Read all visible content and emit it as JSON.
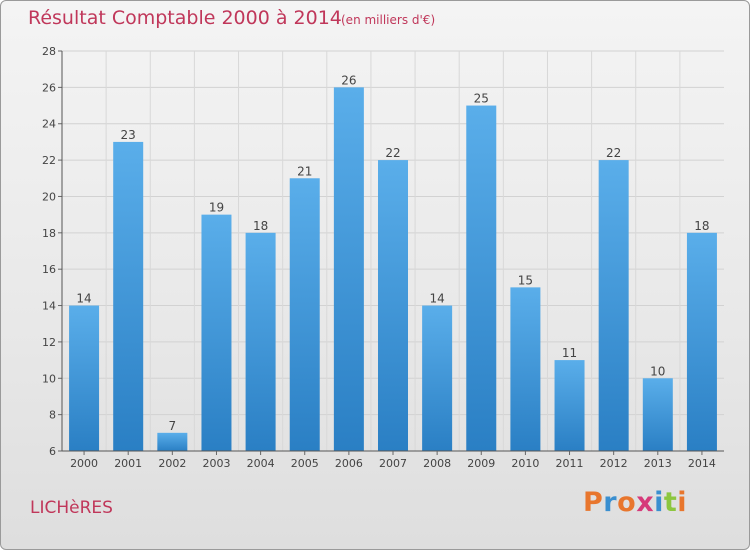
{
  "header": {
    "title": "Résultat Comptable 2000 à 2014",
    "subtitle": "(en milliers d'€)"
  },
  "footer": {
    "commune": "LICHèRES",
    "logo_letters": [
      "P",
      "r",
      "o",
      "x",
      "i",
      "t",
      "i"
    ],
    "logo_colors": [
      "#e8762d",
      "#3a8fd0",
      "#e8762d",
      "#d63a7a",
      "#3a8fd0",
      "#8cc63f",
      "#e8762d"
    ]
  },
  "colors": {
    "bar_light": "#5aaeea",
    "bar_dark": "#2a7fc4",
    "text": "#444444",
    "accent": "#c0375a"
  },
  "chart_data": {
    "type": "bar",
    "title": "Résultat Comptable 2000 à 2014",
    "xlabel": "",
    "ylabel": "",
    "categories": [
      "2000",
      "2001",
      "2002",
      "2003",
      "2004",
      "2005",
      "2006",
      "2007",
      "2008",
      "2009",
      "2010",
      "2011",
      "2012",
      "2013",
      "2014"
    ],
    "values": [
      14,
      23,
      7,
      19,
      18,
      21,
      26,
      22,
      14,
      25,
      15,
      11,
      22,
      10,
      18
    ],
    "ylim": [
      6,
      28
    ],
    "yticks": [
      6,
      8,
      10,
      12,
      14,
      16,
      18,
      20,
      22,
      24,
      26,
      28
    ],
    "grid": true
  }
}
